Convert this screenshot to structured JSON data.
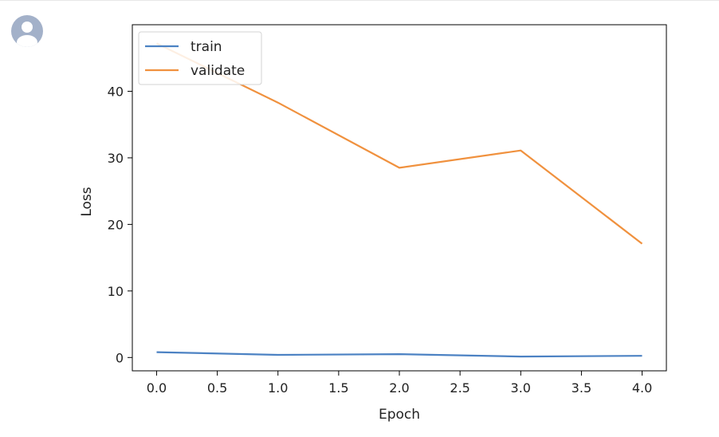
{
  "avatar": {
    "icon": "user-avatar-icon",
    "color": "#a3b1c9"
  },
  "chart_data": {
    "type": "line",
    "title": "",
    "xlabel": "Epoch",
    "ylabel": "Loss",
    "xlim": [
      -0.2,
      4.2
    ],
    "ylim": [
      -2,
      50
    ],
    "xticks": [
      "0.0",
      "0.5",
      "1.0",
      "1.5",
      "2.0",
      "2.5",
      "3.0",
      "3.5",
      "4.0"
    ],
    "yticks": [
      "0",
      "10",
      "20",
      "30",
      "40"
    ],
    "x": [
      0,
      1,
      2,
      3,
      4
    ],
    "series": [
      {
        "name": "train",
        "color": "#4c82c3",
        "values": [
          0.8,
          0.4,
          0.5,
          0.15,
          0.25
        ]
      },
      {
        "name": "validate",
        "color": "#f0913e",
        "values": [
          47.2,
          38.3,
          28.5,
          31.1,
          17.1
        ]
      }
    ],
    "grid": false,
    "legend": "top-left"
  }
}
